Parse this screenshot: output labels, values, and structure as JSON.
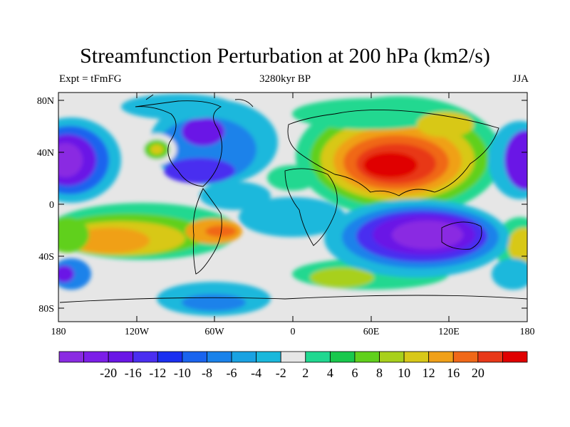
{
  "header": {
    "title": "Streamfunction Perturbation at 200 hPa (km2/s)",
    "left_label": "Expt = tFmFG",
    "center_label": "3280kyr BP",
    "right_label": "JJA"
  },
  "axes": {
    "lat_ticks": [
      "80N",
      "40N",
      "0",
      "40S",
      "80S"
    ],
    "lon_ticks": [
      "180",
      "120W",
      "60W",
      "0",
      "60E",
      "120E",
      "180"
    ]
  },
  "colorbar": {
    "colors": [
      "#8a2be2",
      "#7c1ee8",
      "#6a16e6",
      "#4a2ef0",
      "#1a2ff0",
      "#1a64ee",
      "#1a82ea",
      "#1aa2e2",
      "#1ab8dc",
      "#e6e6e6",
      "#20d890",
      "#18c84c",
      "#60d01c",
      "#a8d01c",
      "#d8c818",
      "#f0a018",
      "#f06818",
      "#e83818",
      "#e00000"
    ],
    "labels": [
      "-20",
      "-16",
      "-12",
      "-10",
      "-8",
      "-6",
      "-4",
      "-2",
      "2",
      "4",
      "6",
      "8",
      "10",
      "12",
      "16",
      "20"
    ]
  },
  "map_icon": "world-coastline-map"
}
